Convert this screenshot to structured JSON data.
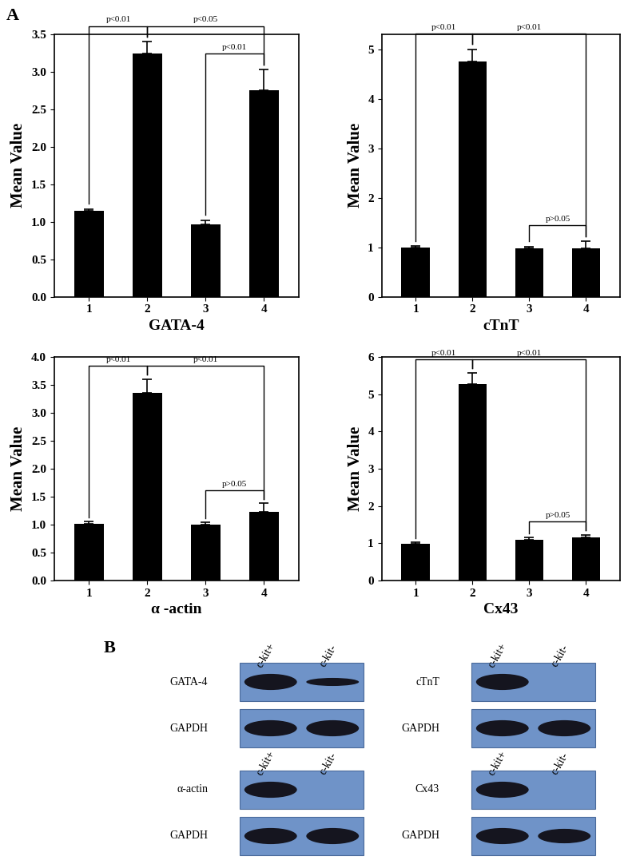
{
  "chart_data": [
    {
      "type": "bar",
      "xlabel": "GATA-4",
      "ylabel": "Mean Value",
      "color": "#000000",
      "categories": [
        "1",
        "2",
        "3",
        "4"
      ],
      "values": [
        1.15,
        3.25,
        0.97,
        2.75
      ],
      "errors": [
        0.02,
        0.15,
        0.05,
        0.28
      ],
      "ylim": [
        0,
        3.5
      ],
      "yticks": [
        {
          "value": 0,
          "label": "0.0"
        },
        {
          "value": 0.5,
          "label": "0.5"
        },
        {
          "value": 1,
          "label": "1.0"
        },
        {
          "value": 1.5,
          "label": "1.5"
        },
        {
          "value": 2,
          "label": "2.0"
        },
        {
          "value": 2.5,
          "label": "2.5"
        },
        {
          "value": 3,
          "label": "3.0"
        },
        {
          "value": 3.5,
          "label": "3.5"
        }
      ],
      "brackets": [
        {
          "from": "1",
          "to": "2",
          "label": "p<0.01"
        },
        {
          "from": "2",
          "to": "4",
          "label": "p<0.05"
        },
        {
          "from": "3",
          "to": "4",
          "label": "p<0.01"
        }
      ]
    },
    {
      "type": "bar",
      "xlabel": "cTnT",
      "ylabel": "Mean Value",
      "color": "#000000",
      "categories": [
        "1",
        "2",
        "3",
        "4"
      ],
      "values": [
        1.0,
        4.75,
        0.98,
        0.97
      ],
      "errors": [
        0.02,
        0.25,
        0.03,
        0.15
      ],
      "ylim": [
        0,
        5.3
      ],
      "yticks": [
        0,
        1,
        2,
        3,
        4,
        5
      ],
      "brackets": [
        {
          "from": "1",
          "to": "2",
          "label": "p<0.01"
        },
        {
          "from": "2",
          "to": "4",
          "label": "p<0.01"
        },
        {
          "from": "3",
          "to": "4",
          "label": "p>0.05"
        }
      ]
    },
    {
      "type": "bar",
      "xlabel": "α -actin",
      "ylabel": "Mean Value",
      "color": "#000000",
      "categories": [
        "1",
        "2",
        "3",
        "4"
      ],
      "values": [
        1.02,
        3.35,
        1.0,
        1.23
      ],
      "errors": [
        0.03,
        0.25,
        0.04,
        0.15
      ],
      "ylim": [
        0,
        4.0
      ],
      "yticks": [
        {
          "value": 0,
          "label": "0.0"
        },
        {
          "value": 0.5,
          "label": "0.5"
        },
        {
          "value": 1,
          "label": "1.0"
        },
        {
          "value": 1.5,
          "label": "1.5"
        },
        {
          "value": 2,
          "label": "2.0"
        },
        {
          "value": 2.5,
          "label": "2.5"
        },
        {
          "value": 3,
          "label": "3.0"
        },
        {
          "value": 3.5,
          "label": "3.5"
        },
        {
          "value": 4,
          "label": "4.0"
        }
      ],
      "brackets": [
        {
          "from": "1",
          "to": "2",
          "label": "p<0.01"
        },
        {
          "from": "2",
          "to": "4",
          "label": "p<0.01"
        },
        {
          "from": "3",
          "to": "4",
          "label": "p>0.05"
        }
      ]
    },
    {
      "type": "bar",
      "xlabel": "Cx43",
      "ylabel": "Mean Value",
      "color": "#000000",
      "categories": [
        "1",
        "2",
        "3",
        "4"
      ],
      "values": [
        0.98,
        5.28,
        1.1,
        1.15
      ],
      "errors": [
        0.04,
        0.3,
        0.05,
        0.07
      ],
      "ylim": [
        0,
        6
      ],
      "yticks": [
        0,
        1,
        2,
        3,
        4,
        5,
        6
      ],
      "brackets": [
        {
          "from": "1",
          "to": "2",
          "label": "p<0.01"
        },
        {
          "from": "2",
          "to": "4",
          "label": "p<0.01"
        },
        {
          "from": "3",
          "to": "4",
          "label": "p>0.05"
        }
      ]
    }
  ],
  "panel_labels": [
    "A",
    "B"
  ],
  "blots": [
    {
      "target": "GATA-4",
      "lanes": [
        "c-kit+",
        "c-kit-"
      ],
      "bands": [
        1.0,
        0.5
      ],
      "loading_control": "GAPDH",
      "control_bands": [
        1.0,
        1.0
      ]
    },
    {
      "target": "cTnT",
      "lanes": [
        "c-kit+",
        "c-kit-"
      ],
      "bands": [
        1.0,
        0
      ],
      "loading_control": "GAPDH",
      "control_bands": [
        1.0,
        1.0
      ]
    },
    {
      "target": "α-actin",
      "lanes": [
        "c-kit+",
        "c-kit-"
      ],
      "bands": [
        1.0,
        0
      ],
      "loading_control": "GAPDH",
      "control_bands": [
        1.0,
        1.0
      ]
    },
    {
      "target": "Cx43",
      "lanes": [
        "c-kit+",
        "c-kit-"
      ],
      "bands": [
        1.0,
        0
      ],
      "loading_control": "GAPDH",
      "control_bands": [
        1.0,
        0.9
      ]
    }
  ]
}
